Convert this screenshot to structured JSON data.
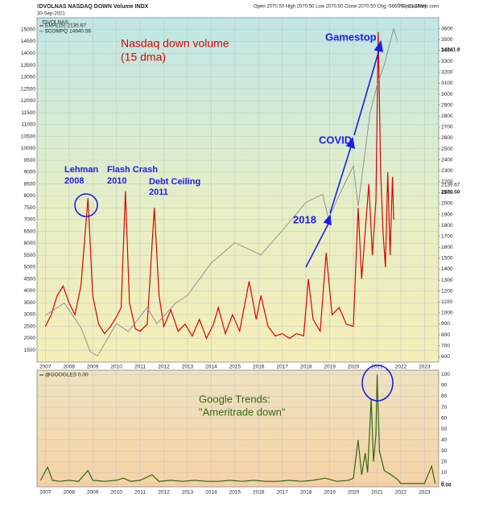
{
  "chart_data": [
    {
      "type": "line",
      "title": "!DVOLNAS NASDAQ DOWN Volume INDX",
      "quote": "Open 2070.50  High 2070.50  Low 2070.50  Close 2070.50  Chg -566.76 (-21.46%)",
      "source": "© StockCharts.com",
      "date": "30-Sep-2021",
      "legend_title": "!DVOLNAS",
      "price_labels": [
        "14341.8",
        "2139.67",
        "2070.50"
      ],
      "annotations": [
        "Nasdaq down volume",
        "(15 dma)",
        "Lehman",
        "2008",
        "Flash Crash",
        "2010",
        "Debt Ceiling",
        "2011",
        "2018",
        "COVID",
        "Gamestop"
      ],
      "xlim": [
        2006.65,
        2023.6
      ],
      "xticks": [
        2007,
        2008,
        2009,
        2010,
        2011,
        2012,
        2013,
        2014,
        2015,
        2016,
        2017,
        2018,
        2019,
        2020,
        2021,
        2022,
        2023
      ],
      "ylim": [
        1000,
        15500
      ],
      "yticks": [
        1500,
        2000,
        2500,
        3000,
        3500,
        4000,
        4500,
        5000,
        5500,
        6000,
        6500,
        7000,
        7500,
        8000,
        8500,
        9000,
        9500,
        10000,
        10500,
        11000,
        11500,
        12000,
        12500,
        13000,
        13500,
        14000,
        14500,
        15000
      ],
      "y2lim": [
        550,
        3700
      ],
      "y2ticks": [
        600,
        700,
        800,
        900,
        1000,
        1100,
        1200,
        1300,
        1400,
        1500,
        1600,
        1700,
        1800,
        1900,
        2000,
        2100,
        2200,
        2300,
        2400,
        2500,
        2600,
        2700,
        2800,
        2900,
        3000,
        3100,
        3200,
        3300,
        3400,
        3500,
        3600
      ],
      "grid": true,
      "series": [
        {
          "name": "EMA(15) 2135.67",
          "color": "#e00000",
          "x": [
            2007.0,
            2007.25,
            2007.5,
            2007.75,
            2008.0,
            2008.25,
            2008.5,
            2008.8,
            2009.0,
            2009.25,
            2009.5,
            2009.75,
            2010.0,
            2010.2,
            2010.38,
            2010.55,
            2010.8,
            2011.0,
            2011.3,
            2011.6,
            2011.8,
            2012.0,
            2012.3,
            2012.6,
            2012.9,
            2013.2,
            2013.5,
            2013.8,
            2014.1,
            2014.3,
            2014.6,
            2014.9,
            2015.2,
            2015.6,
            2015.9,
            2016.1,
            2016.4,
            2016.7,
            2017.0,
            2017.3,
            2017.6,
            2017.9,
            2018.1,
            2018.3,
            2018.6,
            2018.85,
            2019.1,
            2019.4,
            2019.7,
            2020.0,
            2020.2,
            2020.35,
            2020.5,
            2020.65,
            2020.8,
            2020.95,
            2021.05,
            2021.15,
            2021.25,
            2021.35,
            2021.45,
            2021.55,
            2021.65,
            2021.7
          ],
          "values": [
            2500,
            3000,
            3800,
            4200,
            3500,
            3000,
            4200,
            7900,
            3800,
            2600,
            2200,
            2500,
            2900,
            3300,
            8200,
            3500,
            2400,
            2300,
            2600,
            7500,
            3800,
            2500,
            3200,
            2300,
            2600,
            2100,
            2800,
            2000,
            2600,
            3300,
            2200,
            3000,
            2300,
            4400,
            2800,
            3800,
            2500,
            2100,
            2200,
            2000,
            2200,
            2100,
            4500,
            2800,
            2300,
            5600,
            3000,
            3300,
            2600,
            2500,
            7500,
            4500,
            6500,
            8500,
            5500,
            7800,
            14900,
            9000,
            6500,
            5000,
            9000,
            5500,
            8800,
            7000
          ]
        },
        {
          "name": "$COMPQ 14940.56",
          "color": "#8a8a8a",
          "axis": "y2",
          "x": [
            2007.0,
            2007.8,
            2008.5,
            2008.9,
            2009.2,
            2010.0,
            2010.5,
            2011.3,
            2011.7,
            2012.5,
            2013.0,
            2014.0,
            2015.0,
            2016.1,
            2017.0,
            2018.0,
            2018.7,
            2018.95,
            2019.5,
            2020.0,
            2020.2,
            2020.7,
            2021.0,
            2021.3,
            2021.7,
            2021.85
          ],
          "values": [
            977,
            1090,
            866,
            645,
            607,
            903,
            830,
            1050,
            900,
            1090,
            1160,
            1457,
            1642,
            1531,
            1753,
            2011,
            2085,
            1864,
            2122,
            2344,
            1975,
            2825,
            3083,
            3268,
            3600,
            3490
          ]
        }
      ]
    },
    {
      "type": "line",
      "title": "Google Trends:",
      "subtitle": "\"Ameritrade down\"",
      "value_label": "0.00",
      "xlim": [
        2006.65,
        2023.6
      ],
      "xticks": [
        2007,
        2008,
        2009,
        2010,
        2011,
        2012,
        2013,
        2014,
        2015,
        2016,
        2017,
        2018,
        2019,
        2020,
        2021,
        2022,
        2023
      ],
      "ylim": [
        -3,
        104
      ],
      "yticks": [
        0,
        10,
        20,
        30,
        40,
        50,
        60,
        70,
        80,
        90,
        100
      ],
      "grid": true,
      "series": [
        {
          "name": "@GOOGLES 0.00",
          "color": "#2f6a12",
          "x": [
            2006.8,
            2007.1,
            2007.3,
            2007.6,
            2008.0,
            2008.4,
            2008.8,
            2009.0,
            2009.5,
            2010.0,
            2010.3,
            2010.6,
            2011.0,
            2011.5,
            2011.8,
            2012.3,
            2012.8,
            2013.3,
            2013.8,
            2014.3,
            2014.8,
            2015.3,
            2015.8,
            2016.3,
            2016.8,
            2017.3,
            2017.8,
            2018.3,
            2018.8,
            2019.3,
            2019.8,
            2020.0,
            2020.2,
            2020.35,
            2020.5,
            2020.6,
            2020.75,
            2020.85,
            2020.95,
            2021.0,
            2021.1,
            2021.3,
            2021.6,
            2021.9,
            2022.0,
            2022.5,
            2023.0,
            2023.3,
            2023.45
          ],
          "values": [
            3,
            15,
            3,
            2,
            3,
            2,
            12,
            3,
            2,
            3,
            5,
            2,
            3,
            8,
            2,
            3,
            2,
            3,
            2,
            2,
            3,
            2,
            3,
            2,
            2,
            3,
            2,
            3,
            5,
            2,
            3,
            5,
            40,
            8,
            28,
            10,
            78,
            20,
            45,
            100,
            30,
            12,
            8,
            3,
            0,
            0,
            0,
            16,
            0
          ]
        }
      ]
    }
  ]
}
